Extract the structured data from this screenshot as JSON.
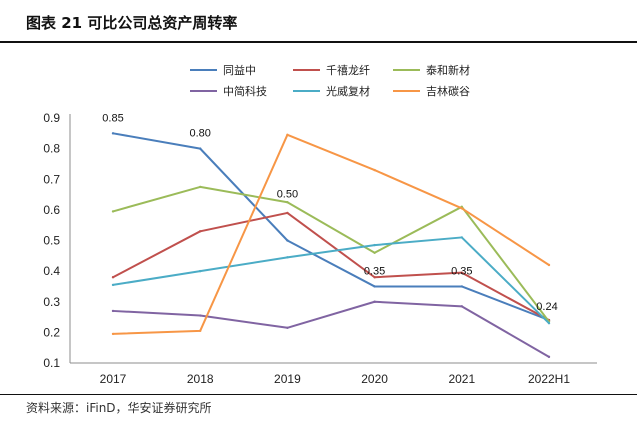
{
  "title": "图表 21 可比公司总资产周转率",
  "source": "资料来源：iFinD，华安证券研究所",
  "chart_data": {
    "type": "line",
    "categories": [
      "2017",
      "2018",
      "2019",
      "2020",
      "2021",
      "2022H1"
    ],
    "ylim": [
      0.1,
      0.9
    ],
    "yticks": [
      "0.1",
      "0.2",
      "0.3",
      "0.4",
      "0.5",
      "0.6",
      "0.7",
      "0.8",
      "0.9"
    ],
    "grid": false,
    "legend_position": "top",
    "series": [
      {
        "name": "同益中",
        "color": "#4a7ebb",
        "values": [
          0.85,
          0.8,
          0.5,
          0.35,
          0.35,
          0.24
        ]
      },
      {
        "name": "千禧龙纤",
        "color": "#c0504d",
        "values": [
          0.38,
          0.53,
          0.59,
          0.38,
          0.395,
          0.24
        ]
      },
      {
        "name": "泰和新材",
        "color": "#9bbb59",
        "values": [
          0.595,
          0.675,
          0.625,
          0.46,
          0.61,
          0.235
        ]
      },
      {
        "name": "中简科技",
        "color": "#8064a2",
        "values": [
          0.27,
          0.255,
          0.215,
          0.3,
          0.285,
          0.12
        ]
      },
      {
        "name": "光威复材",
        "color": "#4bacc6",
        "values": [
          0.355,
          0.4,
          0.445,
          0.485,
          0.51,
          0.23
        ]
      },
      {
        "name": "吉林碳谷",
        "color": "#f79646",
        "values": [
          0.195,
          0.205,
          0.845,
          0.73,
          0.605,
          0.42
        ]
      }
    ],
    "data_labels": [
      {
        "series": 0,
        "index": 0,
        "text": "0.85"
      },
      {
        "series": 0,
        "index": 1,
        "text": "0.80"
      },
      {
        "series": 0,
        "index": 2,
        "text": "0.50"
      },
      {
        "series": 0,
        "index": 3,
        "text": "0.35"
      },
      {
        "series": 0,
        "index": 4,
        "text": "0.35"
      },
      {
        "series": 0,
        "index": 5,
        "text": "0.24"
      }
    ]
  }
}
